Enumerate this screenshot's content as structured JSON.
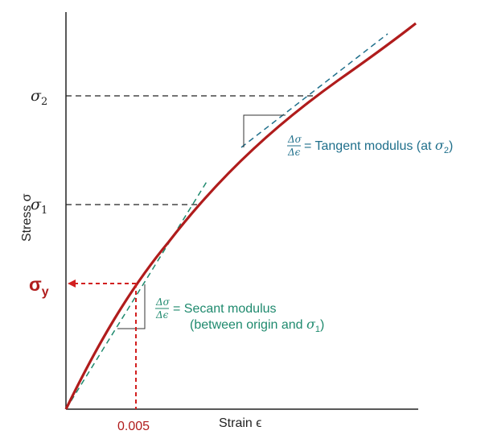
{
  "axes": {
    "x_label": "Strain ϵ",
    "y_label": "Stress σ"
  },
  "levels": {
    "sigma2_symbol": "σ",
    "sigma2_subscript": "2",
    "sigma1_symbol": "σ",
    "sigma1_subscript": "1",
    "sigmay_symbol": "σ",
    "sigmay_subscript": "y"
  },
  "strain_marker": "0.005",
  "tangent_annotation": {
    "numerator": "Δσ",
    "denominator": "Δϵ",
    "text_prefix": "= Tangent modulus (at ",
    "sigma_symbol": "σ",
    "sigma_subscript": "2",
    "text_suffix": ")"
  },
  "secant_annotation": {
    "numerator": "Δσ",
    "denominator": "Δϵ",
    "line1": "= Secant modulus",
    "line2_prefix": "(between origin and ",
    "sigma_symbol": "σ",
    "sigma_subscript": "1",
    "line2_suffix": ")"
  },
  "colors": {
    "curve": "#b01c1c",
    "tangent_line": "#1f6f8b",
    "secant_line": "#1f8a6e",
    "yield_marker": "#d21f1f",
    "guide_lines": "#222222",
    "axes": "#222222"
  }
}
